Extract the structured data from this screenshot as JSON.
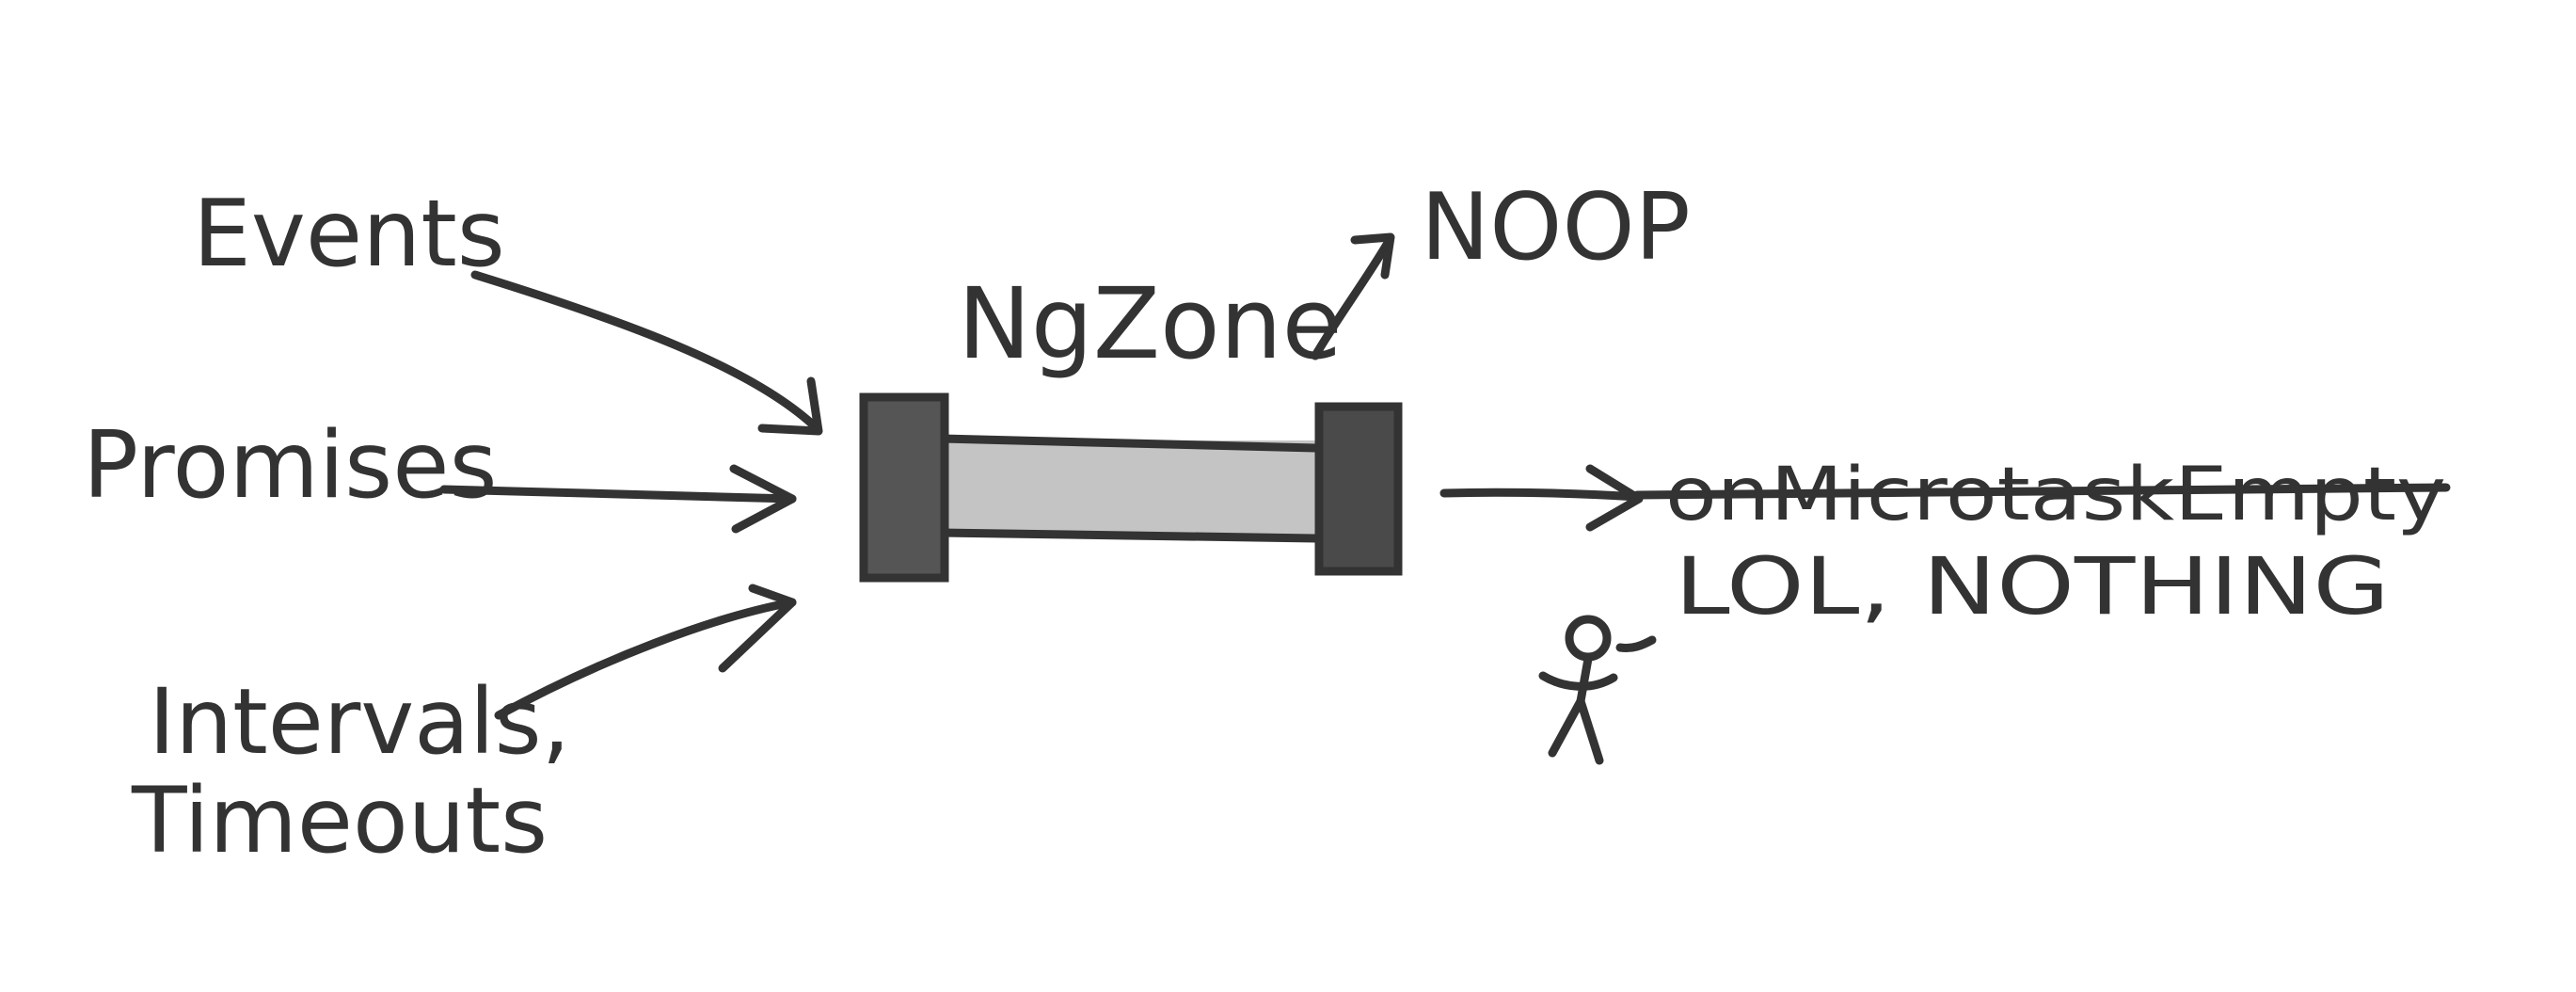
{
  "diagram": {
    "inputs": {
      "events": "Events",
      "promises": "Promises",
      "intervals_line1": "Intervals,",
      "intervals_line2": "Timeouts"
    },
    "zone_label": "NgZone",
    "noop_label": "NOOP",
    "struck_output": "onMicrotaskEmpty",
    "output_label": "LOL, NOTHING"
  },
  "colors": {
    "ink": "#333333",
    "tube": "#c4c4c4",
    "block": "#555555"
  }
}
